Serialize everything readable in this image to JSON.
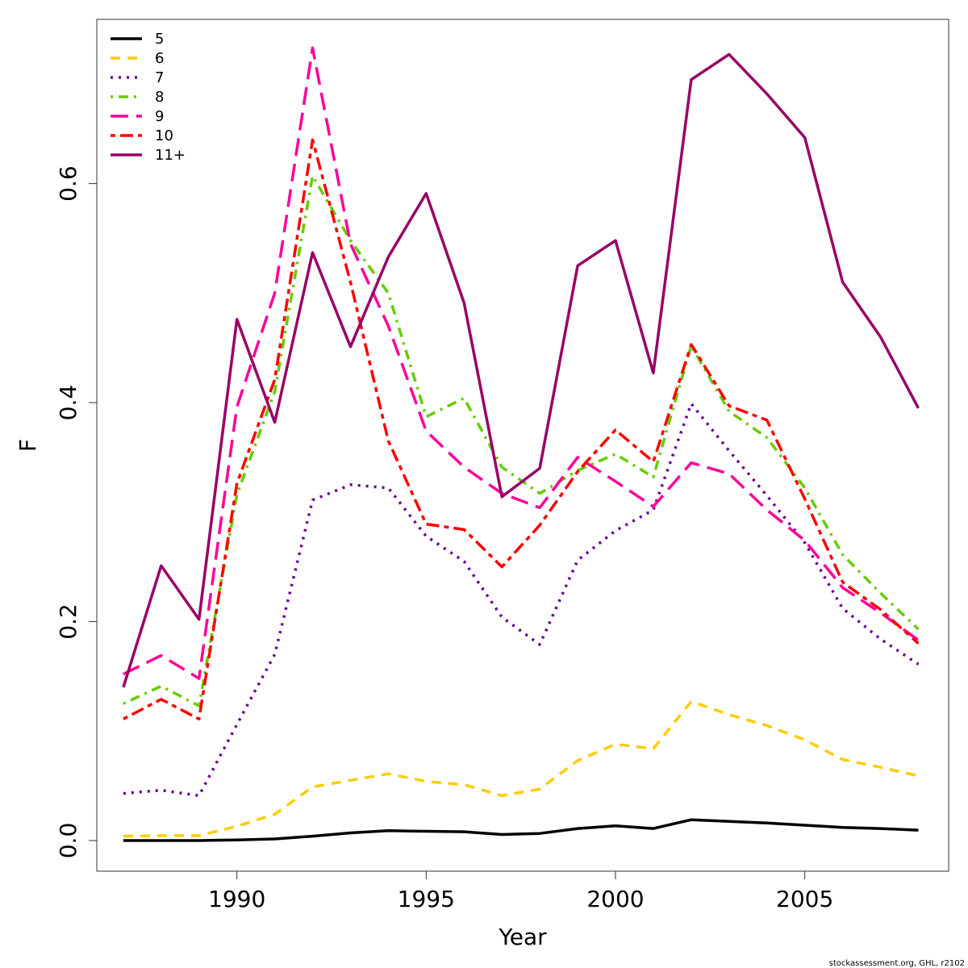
{
  "chart_data": {
    "type": "line",
    "xlabel": "Year",
    "ylabel": "F",
    "xlim": [
      1986.3,
      2008.8
    ],
    "ylim": [
      -0.028,
      0.75
    ],
    "xticks": [
      1990,
      1995,
      2000,
      2005
    ],
    "yticks": [
      0.0,
      0.2,
      0.4,
      0.6
    ],
    "ytick_labels": [
      "0.0",
      "0.2",
      "0.4",
      "0.6"
    ],
    "grid": false,
    "legend_position": "top-left",
    "x": [
      1987,
      1988,
      1989,
      1990,
      1991,
      1992,
      1993,
      1994,
      1995,
      1996,
      1997,
      1998,
      1999,
      2000,
      2001,
      2002,
      2003,
      2004,
      2005,
      2006,
      2007,
      2008
    ],
    "series": [
      {
        "name": "5",
        "color": "#000000",
        "dash": "solid",
        "values": [
          0.0,
          0.0,
          0.0,
          0.0005,
          0.0015,
          0.004,
          0.007,
          0.009,
          0.0085,
          0.008,
          0.0055,
          0.0065,
          0.011,
          0.0135,
          0.011,
          0.019,
          0.0175,
          0.016,
          0.014,
          0.012,
          0.011,
          0.0095
        ]
      },
      {
        "name": "6",
        "color": "#FFCC00",
        "dash": "dashed",
        "values": [
          0.004,
          0.0045,
          0.0045,
          0.013,
          0.024,
          0.049,
          0.055,
          0.061,
          0.054,
          0.051,
          0.041,
          0.047,
          0.073,
          0.088,
          0.084,
          0.127,
          0.115,
          0.105,
          0.092,
          0.074,
          0.067,
          0.059
        ]
      },
      {
        "name": "7",
        "color": "#660099",
        "dash": "dotted",
        "values": [
          0.043,
          0.046,
          0.041,
          0.106,
          0.17,
          0.311,
          0.325,
          0.322,
          0.278,
          0.255,
          0.204,
          0.179,
          0.256,
          0.283,
          0.302,
          0.399,
          0.356,
          0.315,
          0.272,
          0.212,
          0.184,
          0.161
        ]
      },
      {
        "name": "8",
        "color": "#66CC00",
        "dash": "dotdash",
        "values": [
          0.125,
          0.141,
          0.123,
          0.316,
          0.41,
          0.607,
          0.548,
          0.5,
          0.387,
          0.404,
          0.341,
          0.317,
          0.338,
          0.353,
          0.332,
          0.452,
          0.392,
          0.368,
          0.322,
          0.261,
          0.226,
          0.193
        ]
      },
      {
        "name": "9",
        "color": "#FF0099",
        "dash": "longdash",
        "values": [
          0.152,
          0.169,
          0.148,
          0.396,
          0.5,
          0.724,
          0.545,
          0.47,
          0.374,
          0.341,
          0.317,
          0.304,
          0.35,
          0.328,
          0.305,
          0.345,
          0.335,
          0.302,
          0.274,
          0.231,
          0.208,
          0.183
        ]
      },
      {
        "name": "10",
        "color": "#FF0000",
        "dash": "twodash",
        "values": [
          0.111,
          0.129,
          0.111,
          0.326,
          0.421,
          0.64,
          0.51,
          0.365,
          0.289,
          0.284,
          0.25,
          0.288,
          0.337,
          0.375,
          0.346,
          0.453,
          0.397,
          0.384,
          0.312,
          0.236,
          0.211,
          0.18
        ]
      },
      {
        "name": "11+",
        "color": "#990066",
        "dash": "solid",
        "values": [
          0.14,
          0.251,
          0.202,
          0.476,
          0.382,
          0.537,
          0.451,
          0.533,
          0.591,
          0.491,
          0.314,
          0.34,
          0.525,
          0.548,
          0.427,
          0.695,
          0.718,
          0.682,
          0.642,
          0.51,
          0.46,
          0.395
        ]
      }
    ]
  },
  "footer": {
    "credit": "stockassessment.org, GHL, r2102"
  }
}
